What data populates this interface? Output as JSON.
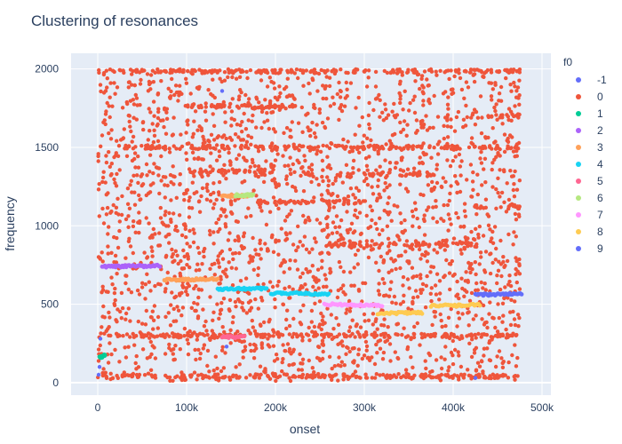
{
  "chart_data": {
    "type": "scatter",
    "title": "Clustering of resonances",
    "xlabel": "onset",
    "ylabel": "frequency",
    "xlim": [
      -30000,
      510000
    ],
    "ylim": [
      -80,
      2100
    ],
    "x_ticks": [
      {
        "value": 0,
        "label": "0"
      },
      {
        "value": 100000,
        "label": "100k"
      },
      {
        "value": 200000,
        "label": "200k"
      },
      {
        "value": 300000,
        "label": "300k"
      },
      {
        "value": 400000,
        "label": "400k"
      },
      {
        "value": 500000,
        "label": "500k"
      }
    ],
    "y_ticks": [
      {
        "value": 0,
        "label": "0"
      },
      {
        "value": 500,
        "label": "500"
      },
      {
        "value": 1000,
        "label": "1000"
      },
      {
        "value": 1500,
        "label": "1500"
      },
      {
        "value": 2000,
        "label": "2000"
      }
    ],
    "grid": true,
    "legend": {
      "title": "f0",
      "placement": "right"
    },
    "background": {
      "name": "0",
      "color": "#EF553B",
      "onset_range": [
        0,
        475000
      ],
      "frequency_range": [
        10,
        2000
      ],
      "point_count": 2400,
      "dense_bands": [
        {
          "frequency": 1985,
          "onset_range": [
            0,
            475000
          ]
        },
        {
          "frequency": 1760,
          "onset_range": [
            100000,
            250000
          ]
        },
        {
          "frequency": 1700,
          "onset_range": [
            420000,
            475000
          ]
        },
        {
          "frequency": 1500,
          "onset_range": [
            30000,
            475000
          ]
        },
        {
          "frequency": 1350,
          "onset_range": [
            100000,
            200000
          ]
        },
        {
          "frequency": 1330,
          "onset_range": [
            300000,
            380000
          ]
        },
        {
          "frequency": 1150,
          "onset_range": [
            180000,
            300000
          ]
        },
        {
          "frequency": 1120,
          "onset_range": [
            420000,
            475000
          ]
        },
        {
          "frequency": 880,
          "onset_range": [
            260000,
            420000
          ]
        },
        {
          "frequency": 300,
          "onset_range": [
            0,
            475000
          ]
        },
        {
          "frequency": 40,
          "onset_range": [
            0,
            475000
          ]
        }
      ]
    },
    "series": [
      {
        "name": "-1",
        "color": "#636efa",
        "points": [
          [
            2000,
            100
          ],
          [
            3000,
            280
          ],
          [
            1000,
            50
          ],
          [
            140000,
            1860
          ],
          [
            425000,
            30
          ],
          [
            145000,
            230
          ]
        ]
      },
      {
        "name": "0",
        "color": "#EF553B",
        "points": []
      },
      {
        "name": "1",
        "color": "#00cc96",
        "points": [
          [
            2000,
            160
          ],
          [
            5000,
            165
          ],
          [
            7000,
            170
          ],
          [
            8000,
            180
          ]
        ]
      },
      {
        "name": "2",
        "color": "#ab63fa",
        "points": [
          [
            5000,
            740
          ],
          [
            70000,
            745
          ]
        ]
      },
      {
        "name": "3",
        "color": "#FFA15A",
        "points": [
          [
            75000,
            655
          ],
          [
            135000,
            660
          ],
          [
            140000,
            1190
          ],
          [
            170000,
            1190
          ]
        ]
      },
      {
        "name": "4",
        "color": "#19d3f3",
        "points": [
          [
            135000,
            595
          ],
          [
            190000,
            600
          ],
          [
            195000,
            570
          ],
          [
            260000,
            565
          ]
        ]
      },
      {
        "name": "5",
        "color": "#FF6692",
        "points": [
          [
            140000,
            290
          ],
          [
            165000,
            292
          ]
        ]
      },
      {
        "name": "6",
        "color": "#B6E880",
        "points": [
          [
            155000,
            1195
          ],
          [
            175000,
            1195
          ]
        ]
      },
      {
        "name": "7",
        "color": "#FF97FF",
        "points": [
          [
            255000,
            500
          ],
          [
            320000,
            490
          ]
        ]
      },
      {
        "name": "8",
        "color": "#FECB52",
        "points": [
          [
            315000,
            440
          ],
          [
            365000,
            445
          ],
          [
            375000,
            490
          ],
          [
            430000,
            495
          ]
        ]
      },
      {
        "name": "9",
        "color": "#636efa",
        "points": [
          [
            425000,
            560
          ],
          [
            477000,
            565
          ]
        ]
      }
    ]
  }
}
